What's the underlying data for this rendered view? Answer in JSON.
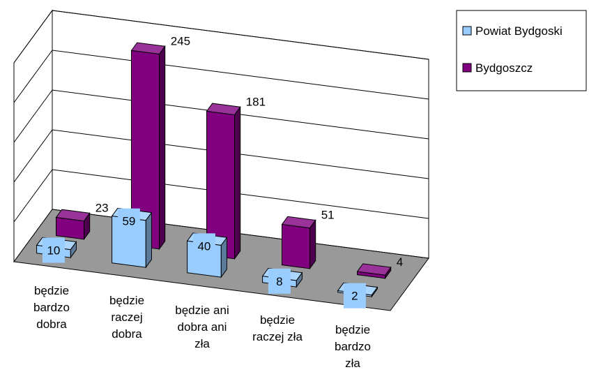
{
  "chart_data": {
    "type": "bar3d",
    "categories": [
      "będzie\nbardzo\ndobra",
      "będzie\nraczej\ndobra",
      "będzie ani\ndobra ani\nzła",
      "będzie\nraczej zła",
      "będzie\nbardzo\nzła"
    ],
    "series": [
      {
        "name": "Powiat Bydgoski",
        "color": "#99ccff",
        "values": [
          10,
          59,
          40,
          8,
          2
        ]
      },
      {
        "name": "Bydgoszcz",
        "color": "#800080",
        "values": [
          23,
          245,
          181,
          51,
          4
        ]
      }
    ],
    "ylim": [
      0,
      250
    ],
    "yticks": [
      0,
      50,
      100,
      150,
      200,
      250
    ],
    "grid": true,
    "legend": "right"
  }
}
